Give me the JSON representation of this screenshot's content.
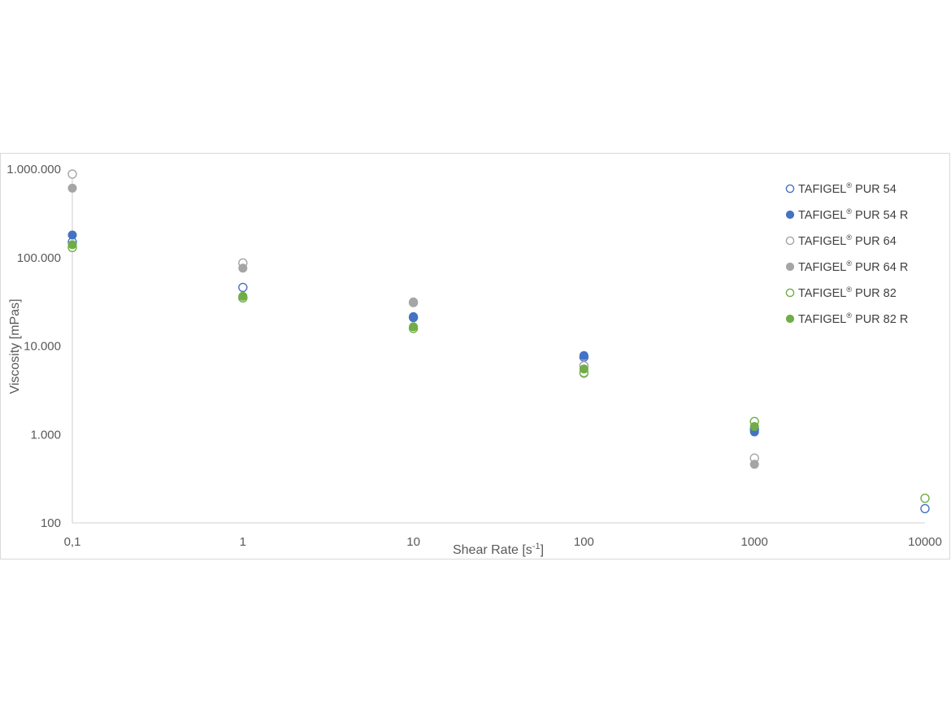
{
  "chart_data": {
    "type": "scatter",
    "xscale": "log",
    "yscale": "log",
    "xlim": [
      0.1,
      10000
    ],
    "ylim": [
      100,
      1000000
    ],
    "grid": false,
    "legend_position": "top-right",
    "xlabel": "Shear Rate [s",
    "xlabel_sup": "-1",
    "xlabel_suffix": "]",
    "ylabel": "Viscosity [mPas]",
    "x_ticks": [
      0.1,
      1,
      10,
      100,
      1000,
      10000
    ],
    "x_tick_labels": [
      "0,1",
      "1",
      "10",
      "100",
      "1000",
      "10000"
    ],
    "y_ticks": [
      100,
      1000,
      10000,
      100000,
      1000000
    ],
    "y_tick_labels": [
      "100",
      "1.000",
      "10.000",
      "100.000",
      "1.000.000"
    ],
    "series": [
      {
        "name": "TAFIGEL",
        "name_sup": "®",
        "name_suffix": " PUR 54",
        "color": "#4472c4",
        "filled": false,
        "x": [
          0.1,
          1,
          10,
          100,
          1000,
          10000
        ],
        "y": [
          150000,
          46000,
          21000,
          7500,
          1150,
          145
        ]
      },
      {
        "name": "TAFIGEL",
        "name_sup": "®",
        "name_suffix": " PUR 54 R",
        "color": "#4472c4",
        "filled": true,
        "x": [
          0.1,
          1,
          10,
          100,
          1000
        ],
        "y": [
          180000,
          35000,
          21500,
          7800,
          1070
        ]
      },
      {
        "name": "TAFIGEL",
        "name_sup": "®",
        "name_suffix": " PUR 64",
        "color": "#a5a5a5",
        "filled": false,
        "x": [
          0.1,
          1,
          10,
          100,
          1000
        ],
        "y": [
          880000,
          87000,
          31000,
          6000,
          540
        ]
      },
      {
        "name": "TAFIGEL",
        "name_sup": "®",
        "name_suffix": " PUR 64 R",
        "color": "#a5a5a5",
        "filled": true,
        "x": [
          0.1,
          1,
          10,
          100,
          1000
        ],
        "y": [
          610000,
          76000,
          31500,
          4900,
          460
        ]
      },
      {
        "name": "TAFIGEL",
        "name_sup": "®",
        "name_suffix": " PUR 82",
        "color": "#70ad47",
        "filled": false,
        "x": [
          0.1,
          1,
          10,
          100,
          1000,
          10000
        ],
        "y": [
          130000,
          35000,
          15800,
          5000,
          1400,
          190
        ]
      },
      {
        "name": "TAFIGEL",
        "name_sup": "®",
        "name_suffix": " PUR 82 R",
        "color": "#70ad47",
        "filled": true,
        "x": [
          0.1,
          1,
          10,
          100,
          1000
        ],
        "y": [
          140000,
          36500,
          16500,
          5500,
          1230
        ]
      }
    ]
  }
}
